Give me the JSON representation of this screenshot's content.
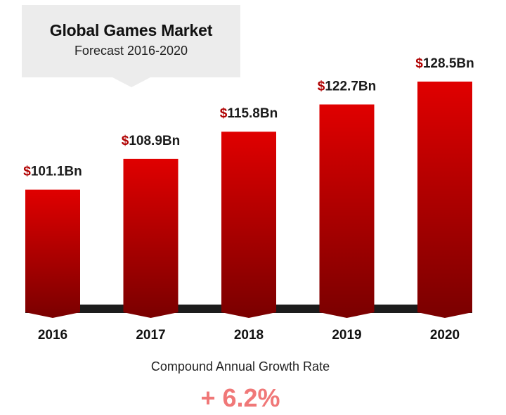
{
  "title": "Global Games Market",
  "subtitle": "Forecast 2016-2020",
  "cagr": {
    "label": "Compound Annual Growth Rate",
    "value": "+ 6.2%"
  },
  "colors": {
    "bar_top": "#e00000",
    "bar_bottom": "#7a0000",
    "dollar_sign": "#b00000",
    "baseline": "#1c1c1c",
    "title_box": "#ececec",
    "cagr_value": "#f07878"
  },
  "chart_data": {
    "type": "bar",
    "title": "Global Games Market",
    "subtitle": "Forecast 2016-2020",
    "categories": [
      "2016",
      "2017",
      "2018",
      "2019",
      "2020"
    ],
    "values": [
      101.1,
      108.9,
      115.8,
      122.7,
      128.5
    ],
    "value_labels": [
      "$101.1Bn",
      "$108.9Bn",
      "$115.8Bn",
      "$122.7Bn",
      "$128.5Bn"
    ],
    "ylim": [
      70,
      135
    ],
    "grid": false,
    "legend": "none"
  }
}
